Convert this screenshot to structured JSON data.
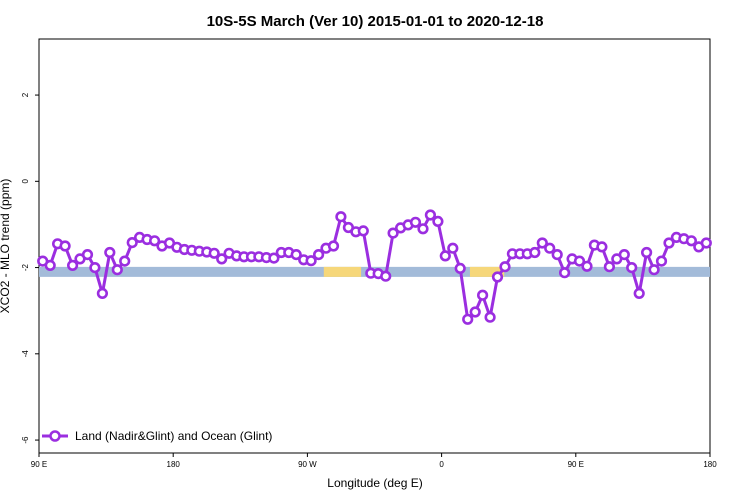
{
  "chart_data": {
    "type": "line",
    "title": "10S-5S March (Ver 10)   2015-01-01 to 2020-12-18",
    "xlabel": "Longitude (deg E)",
    "ylabel": "XCO2 - MLO trend (ppm)",
    "x_tick_labels": [
      "90 E",
      "180",
      "90 W",
      "0",
      "90 E",
      "180"
    ],
    "x_ticks": [
      90,
      180,
      270,
      360,
      450,
      540
    ],
    "xlim": [
      90,
      540
    ],
    "ylim": [
      -6.3,
      3.3
    ],
    "y_ticks": [
      -6,
      -4,
      -2,
      0,
      2
    ],
    "grid": false,
    "legend_position": "bottom-left",
    "surface_band": {
      "y_center": -2.1,
      "colors": {
        "ocean": "#a3bbd9",
        "land": "#f6d77a"
      },
      "land_segments": [
        [
          281,
          306
        ],
        [
          379,
          402
        ]
      ]
    },
    "series": [
      {
        "name": "Land (Nadir&Glint) and Ocean (Glint)",
        "color": "#9b2ee0",
        "x": [
          92.5,
          97.5,
          102.5,
          107.5,
          112.5,
          117.5,
          122.5,
          127.5,
          132.5,
          137.5,
          142.5,
          147.5,
          152.5,
          157.5,
          162.5,
          167.5,
          172.5,
          177.5,
          182.5,
          187.5,
          192.5,
          197.5,
          202.5,
          207.5,
          212.5,
          217.5,
          222.5,
          227.5,
          232.5,
          237.5,
          242.5,
          247.5,
          252.5,
          257.5,
          262.5,
          267.5,
          272.5,
          277.5,
          282.5,
          287.5,
          292.5,
          297.5,
          302.5,
          307.5,
          312.5,
          317.5,
          322.5,
          327.5,
          332.5,
          337.5,
          342.5,
          347.5,
          352.5,
          357.5,
          362.5,
          367.5,
          372.5,
          377.5,
          382.5,
          387.5,
          392.5,
          397.5,
          402.5,
          407.5,
          412.5,
          417.5,
          422.5,
          427.5,
          432.5,
          437.5,
          442.5,
          447.5,
          452.5,
          457.5,
          462.5,
          467.5,
          472.5,
          477.5,
          482.5,
          487.5,
          492.5,
          497.5,
          502.5,
          507.5,
          512.5,
          517.5,
          522.5,
          527.5,
          532.5,
          537.5
        ],
        "y": [
          -1.85,
          -1.95,
          -1.45,
          -1.5,
          -1.95,
          -1.8,
          -1.7,
          -2.0,
          -2.6,
          -1.65,
          -2.05,
          -1.85,
          -1.42,
          -1.3,
          -1.35,
          -1.38,
          -1.5,
          -1.43,
          -1.53,
          -1.58,
          -1.6,
          -1.62,
          -1.64,
          -1.67,
          -1.8,
          -1.67,
          -1.73,
          -1.75,
          -1.75,
          -1.75,
          -1.77,
          -1.78,
          -1.65,
          -1.65,
          -1.7,
          -1.82,
          -1.84,
          -1.7,
          -1.55,
          -1.5,
          -0.82,
          -1.07,
          -1.17,
          -1.15,
          -2.13,
          -2.14,
          -2.2,
          -1.2,
          -1.08,
          -1.01,
          -0.95,
          -1.1,
          -0.78,
          -0.93,
          -1.73,
          -1.55,
          -2.02,
          -3.2,
          -3.03,
          -2.64,
          -3.15,
          -2.22,
          -1.98,
          -1.68,
          -1.68,
          -1.68,
          -1.65,
          -1.43,
          -1.55,
          -1.7,
          -2.12,
          -1.8,
          -1.85,
          -1.97,
          -1.48,
          -1.52,
          -1.98,
          -1.8,
          -1.7,
          -2.0,
          -2.6,
          -1.65,
          -2.05,
          -1.85,
          -1.43,
          -1.3,
          -1.33,
          -1.38,
          -1.52,
          -1.43
        ]
      }
    ]
  }
}
